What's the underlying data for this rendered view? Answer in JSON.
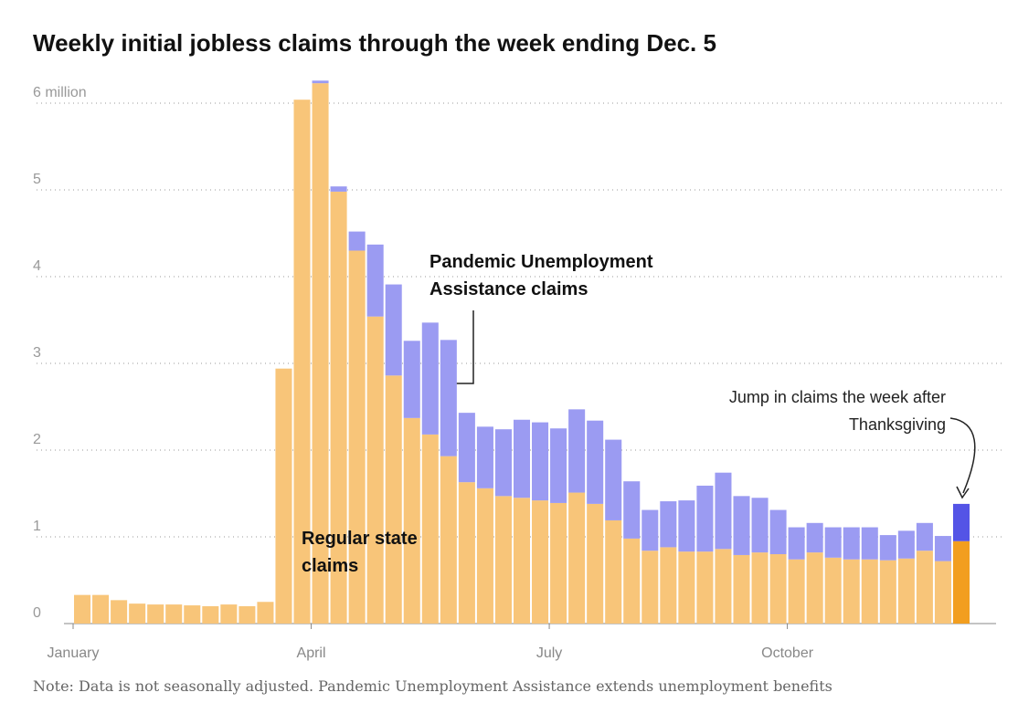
{
  "chart_data": {
    "type": "stacked_bar",
    "title": "Weekly initial jobless claims through the week ending Dec. 5",
    "note": "Note: Data is not seasonally adjusted. Pandemic Unemployment Assistance extends unemployment benefits",
    "annotation": "Jump in claims the week after Thanksgiving",
    "categories": [
      "January",
      null,
      null,
      null,
      null,
      null,
      null,
      null,
      null,
      null,
      null,
      null,
      null,
      "April",
      null,
      null,
      null,
      null,
      null,
      null,
      null,
      null,
      null,
      null,
      null,
      null,
      "July",
      null,
      null,
      null,
      null,
      null,
      null,
      null,
      null,
      null,
      null,
      null,
      null,
      "October",
      null,
      null,
      null,
      null,
      null,
      null,
      null,
      null,
      null
    ],
    "series": [
      {
        "name": "Regular state claims",
        "color": "#f8c579",
        "colors": [
          "#f8c579",
          "#f8c579",
          "#f8c579",
          "#f8c579",
          "#f8c579",
          "#f8c579",
          "#f8c579",
          "#f8c579",
          "#f8c579",
          "#f8c579",
          "#f8c579",
          "#f8c579",
          "#f8c579",
          "#f8c579",
          "#f8c579",
          "#f8c579",
          "#f8c579",
          "#f8c579",
          "#f8c579",
          "#f8c579",
          "#f8c579",
          "#f8c579",
          "#f8c579",
          "#f8c579",
          "#f8c579",
          "#f8c579",
          "#f8c579",
          "#f8c579",
          "#f8c579",
          "#f8c579",
          "#f8c579",
          "#f8c579",
          "#f8c579",
          "#f8c579",
          "#f8c579",
          "#f8c579",
          "#f8c579",
          "#f8c579",
          "#f8c579",
          "#f8c579",
          "#f8c579",
          "#f8c579",
          "#f8c579",
          "#f8c579",
          "#f8c579",
          "#f8c579",
          "#f8c579",
          "#f8c579",
          "#f29e1f"
        ],
        "values": [
          0.33,
          0.33,
          0.27,
          0.23,
          0.22,
          0.22,
          0.21,
          0.2,
          0.22,
          0.2,
          0.25,
          2.94,
          6.04,
          6.23,
          4.98,
          4.3,
          3.54,
          2.86,
          2.37,
          2.18,
          1.93,
          1.63,
          1.56,
          1.47,
          1.45,
          1.42,
          1.39,
          1.51,
          1.38,
          1.19,
          0.98,
          0.84,
          0.88,
          0.83,
          0.83,
          0.86,
          0.79,
          0.82,
          0.8,
          0.74,
          0.82,
          0.76,
          0.74,
          0.74,
          0.73,
          0.75,
          0.84,
          0.72,
          0.95
        ]
      },
      {
        "name": "Pandemic Unemployment Assistance claims",
        "color": "#9b9bf2",
        "colors": [
          "#9b9bf2",
          "#9b9bf2",
          "#9b9bf2",
          "#9b9bf2",
          "#9b9bf2",
          "#9b9bf2",
          "#9b9bf2",
          "#9b9bf2",
          "#9b9bf2",
          "#9b9bf2",
          "#9b9bf2",
          "#9b9bf2",
          "#9b9bf2",
          "#9b9bf2",
          "#9b9bf2",
          "#9b9bf2",
          "#9b9bf2",
          "#9b9bf2",
          "#9b9bf2",
          "#9b9bf2",
          "#9b9bf2",
          "#9b9bf2",
          "#9b9bf2",
          "#9b9bf2",
          "#9b9bf2",
          "#9b9bf2",
          "#9b9bf2",
          "#9b9bf2",
          "#9b9bf2",
          "#9b9bf2",
          "#9b9bf2",
          "#9b9bf2",
          "#9b9bf2",
          "#9b9bf2",
          "#9b9bf2",
          "#9b9bf2",
          "#9b9bf2",
          "#9b9bf2",
          "#9b9bf2",
          "#9b9bf2",
          "#9b9bf2",
          "#9b9bf2",
          "#9b9bf2",
          "#9b9bf2",
          "#9b9bf2",
          "#9b9bf2",
          "#9b9bf2",
          "#9b9bf2",
          "#5454e6"
        ],
        "values": [
          0,
          0,
          0,
          0,
          0,
          0,
          0,
          0,
          0,
          0,
          0,
          0,
          0,
          0.03,
          0.06,
          0.22,
          0.83,
          1.05,
          0.89,
          1.29,
          1.34,
          0.8,
          0.71,
          0.77,
          0.9,
          0.9,
          0.86,
          0.96,
          0.96,
          0.93,
          0.66,
          0.47,
          0.53,
          0.59,
          0.76,
          0.88,
          0.68,
          0.63,
          0.51,
          0.37,
          0.34,
          0.35,
          0.37,
          0.37,
          0.29,
          0.32,
          0.32,
          0.29,
          0.43
        ]
      }
    ],
    "ylim": [
      0,
      6.3
    ],
    "yticks": [
      0,
      1,
      2,
      3,
      4,
      5,
      {
        "value": 6,
        "label": "6 million"
      }
    ],
    "grid": true
  }
}
